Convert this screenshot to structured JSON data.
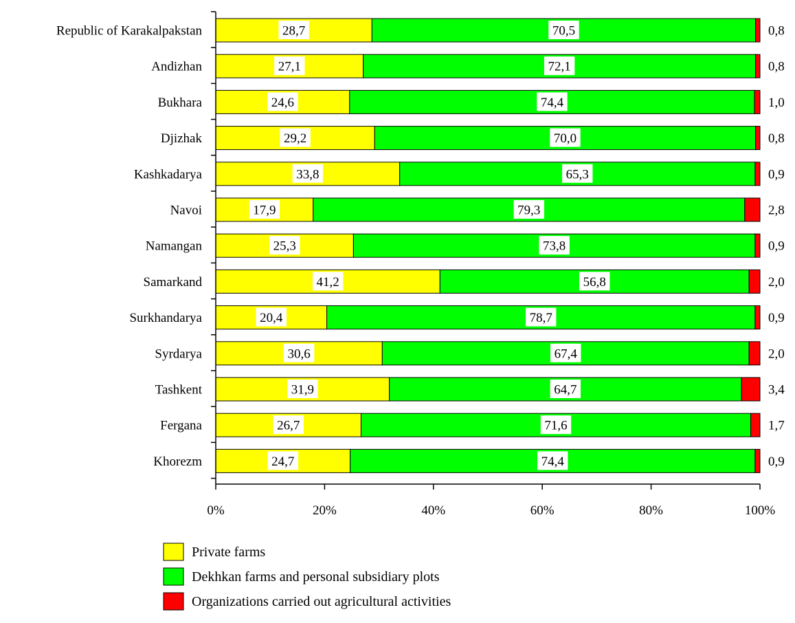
{
  "chart_data": {
    "type": "bar",
    "orientation": "horizontal",
    "stacked": "percent",
    "title": "",
    "xlabel": "",
    "ylabel": "",
    "xlim": [
      0,
      100
    ],
    "x_ticks": [
      "0%",
      "20%",
      "40%",
      "60%",
      "80%",
      "100%"
    ],
    "grid": false,
    "legend_position": "bottom",
    "categories": [
      "Republic of Karakalpakstan",
      "Andizhan",
      "Bukhara",
      "Djizhak",
      "Kashkadarya",
      "Navoi",
      "Namangan",
      "Samarkand",
      "Surkhandarya",
      "Syrdarya",
      "Tashkent",
      "Fergana",
      "Khorezm"
    ],
    "series": [
      {
        "name": "Private farms",
        "color": "#ffff00",
        "values": [
          28.7,
          27.1,
          24.6,
          29.2,
          33.8,
          17.9,
          25.3,
          41.2,
          20.4,
          30.6,
          31.9,
          26.7,
          24.7
        ],
        "labels": [
          "28,7",
          "27,1",
          "24,6",
          "29,2",
          "33,8",
          "17,9",
          "25,3",
          "41,2",
          "20,4",
          "30,6",
          "31,9",
          "26,7",
          "24,7"
        ]
      },
      {
        "name": "Dekhkan farms and personal subsidiary plots",
        "color": "#00ff00",
        "values": [
          70.5,
          72.1,
          74.4,
          70.0,
          65.3,
          79.3,
          73.8,
          56.8,
          78.7,
          67.4,
          64.7,
          71.6,
          74.4
        ],
        "labels": [
          "70,5",
          "72,1",
          "74,4",
          "70,0",
          "65,3",
          "79,3",
          "73,8",
          "56,8",
          "78,7",
          "67,4",
          "64,7",
          "71,6",
          "74,4"
        ]
      },
      {
        "name": "Organizations carried out agricultural activities",
        "color": "#ff0000",
        "values": [
          0.8,
          0.8,
          1.0,
          0.8,
          0.9,
          2.8,
          0.9,
          2.0,
          0.9,
          2.0,
          3.4,
          1.7,
          0.9
        ],
        "labels": [
          "0,8",
          "0,8",
          "1,0",
          "0,8",
          "0,9",
          "2,8",
          "0,9",
          "2,0",
          "0,9",
          "2,0",
          "3,4",
          "1,7",
          "0,9"
        ]
      }
    ]
  }
}
